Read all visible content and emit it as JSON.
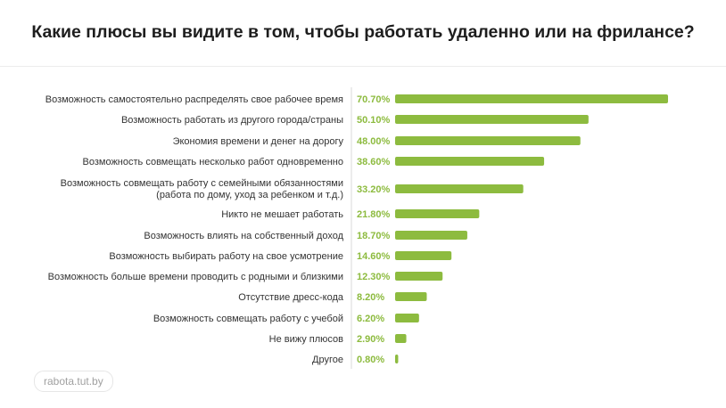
{
  "title": "Какие плюсы вы видите в том, чтобы работать удаленно или на фрилансе?",
  "source": "rabota.tut.by",
  "colors": {
    "bar": "#8dbb3f",
    "value_text": "#8dbb3f",
    "axis": "#d9d9d9",
    "label_text": "#333333"
  },
  "chart_data": {
    "type": "bar",
    "orientation": "horizontal",
    "categories": [
      [
        "Возможность самостоятельно распределять свое рабочее время"
      ],
      [
        "Возможность работать из другого города/страны"
      ],
      [
        "Экономия времени и денег на дорогу"
      ],
      [
        "Возможность совмещать несколько работ одновременно"
      ],
      [
        "Возможность совмещать работу с семейными обязанностями",
        "(работа по дому, уход за ребенком и т.д.)"
      ],
      [
        "Никто не мешает работать"
      ],
      [
        "Возможность влиять на собственный доход"
      ],
      [
        "Возможность выбирать работу на свое усмотрение"
      ],
      [
        "Возможность больше времени проводить с родными и близкими"
      ],
      [
        "Отсутствие дресс-кода"
      ],
      [
        "Возможность совмещать работу с учебой"
      ],
      [
        "Не вижу плюсов"
      ],
      [
        "Другое"
      ]
    ],
    "values": [
      70.7,
      50.1,
      48.0,
      38.6,
      33.2,
      21.8,
      18.7,
      14.6,
      12.3,
      8.2,
      6.2,
      2.9,
      0.8
    ],
    "value_labels": [
      "70.70%",
      "50.10%",
      "48.00%",
      "38.60%",
      "33.20%",
      "21.80%",
      "18.70%",
      "14.60%",
      "12.30%",
      "8.20%",
      "6.20%",
      "2.90%",
      "0.80%"
    ],
    "xlim": [
      0,
      70.7
    ]
  }
}
